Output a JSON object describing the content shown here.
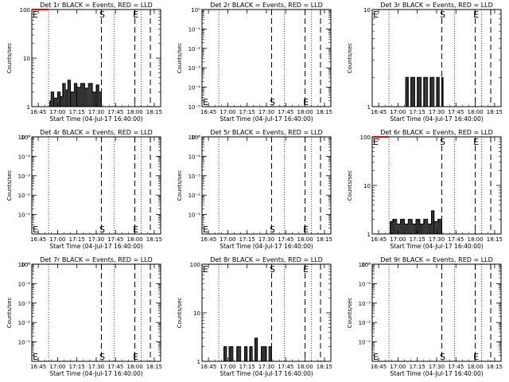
{
  "colors": {
    "background": "#ffffff",
    "events": "#000000",
    "lld": "#ff0000"
  },
  "shared": {
    "xlabel": "Start Time (04-Jul-17 16:40:00)",
    "ylabel": "Counts/sec",
    "xticks": [
      "16:45",
      "17:00",
      "17:15",
      "17:30",
      "17:45",
      "18:00",
      "18:15"
    ],
    "xrange_minutes": [
      0,
      100
    ],
    "xtick_minutes": [
      5,
      20,
      35,
      50,
      65,
      80,
      95
    ],
    "markers": {
      "dotted_minutes": [
        13,
        64,
        85
      ],
      "dashed_minutes": [
        54,
        80,
        92
      ],
      "labels": {
        "start": "S",
        "end": "E",
        "edge": "E"
      }
    },
    "scale": "log"
  },
  "chart_data": [
    {
      "type": "line",
      "title": "Det 1r BLACK = Events, RED = LLD",
      "yticks": [
        "1",
        "10",
        "100"
      ],
      "ylim": [
        1,
        100
      ],
      "marker_label_y": 100,
      "series": [
        {
          "name": "Events",
          "data": [
            [
              13,
              1.0
            ],
            [
              14,
              1.3
            ],
            [
              15,
              2.0
            ],
            [
              17,
              1.5
            ],
            [
              20,
              2.0
            ],
            [
              22,
              1.6
            ],
            [
              24,
              3.0
            ],
            [
              26,
              2.2
            ],
            [
              28,
              3.5
            ],
            [
              30,
              2.0
            ],
            [
              33,
              3.0
            ],
            [
              35,
              2.5
            ],
            [
              38,
              3.0
            ],
            [
              41,
              2.4
            ],
            [
              44,
              3.0
            ],
            [
              47,
              2.0
            ],
            [
              50,
              2.8
            ],
            [
              52,
              2.0
            ],
            [
              54,
              1.0
            ]
          ]
        },
        {
          "name": "LLD",
          "data": [
            [
              0,
              100
            ],
            [
              13,
              100
            ]
          ]
        }
      ]
    },
    {
      "type": "line",
      "title": "Det 2r BLACK = Events, RED = LLD",
      "yticks": [
        "10⁻⁵",
        "10⁻⁴",
        "10⁻³",
        "10⁻²",
        "10⁻¹",
        "10⁰"
      ],
      "ylim": [
        1e-05,
        1
      ],
      "marker_label_y": 1e-05,
      "series": []
    },
    {
      "type": "line",
      "title": "Det 3r BLACK = Events, RED = LLD",
      "yticks": [
        "1",
        "10"
      ],
      "ylim": [
        1,
        10
      ],
      "marker_label_y": 10,
      "series": [
        {
          "name": "Events",
          "data": [
            [
              25,
              1.0
            ],
            [
              26,
              2.0
            ],
            [
              28,
              1.0
            ],
            [
              30,
              2.0
            ],
            [
              33,
              1.0
            ],
            [
              35,
              2.0
            ],
            [
              38,
              1.0
            ],
            [
              40,
              2.0
            ],
            [
              43,
              1.0
            ],
            [
              45,
              2.0
            ],
            [
              48,
              1.0
            ],
            [
              50,
              2.0
            ],
            [
              52,
              1.0
            ],
            [
              54,
              2.0
            ],
            [
              55,
              1.0
            ]
          ]
        }
      ]
    },
    {
      "type": "line",
      "title": "Det 4r BLACK = Events, RED = LLD",
      "yticks": [
        "10⁰",
        "10⁻¹",
        "10⁻²",
        "10⁻³",
        "10⁻⁴",
        "10⁻⁵"
      ],
      "ylim": [
        1e-05,
        1
      ],
      "marker_label_y": 1e-05,
      "series": []
    },
    {
      "type": "line",
      "title": "Det 5r BLACK = Events, RED = LLD",
      "yticks": [
        "10⁰",
        "10⁻¹",
        "10⁻²",
        "10⁻³",
        "10⁻⁴",
        "10⁻⁵"
      ],
      "ylim": [
        1e-05,
        1
      ],
      "marker_label_y": 1e-05,
      "series": []
    },
    {
      "type": "line",
      "title": "Det 6r BLACK = Events, RED = LLD",
      "yticks": [
        "1",
        "10",
        "100"
      ],
      "ylim": [
        1,
        100
      ],
      "marker_label_y": 100,
      "series": [
        {
          "name": "Events",
          "data": [
            [
              13,
              1.0
            ],
            [
              14,
              1.8
            ],
            [
              16,
              2.0
            ],
            [
              19,
              1.6
            ],
            [
              22,
              2.0
            ],
            [
              25,
              1.6
            ],
            [
              28,
              2.0
            ],
            [
              31,
              1.6
            ],
            [
              34,
              2.0
            ],
            [
              37,
              1.6
            ],
            [
              40,
              2.0
            ],
            [
              43,
              1.6
            ],
            [
              46,
              3.0
            ],
            [
              48,
              1.8
            ],
            [
              51,
              2.0
            ],
            [
              54,
              1.0
            ]
          ]
        },
        {
          "name": "LLD",
          "data": [
            [
              0,
              100
            ],
            [
              13,
              100
            ]
          ]
        }
      ]
    },
    {
      "type": "line",
      "title": "Det 7r BLACK = Events, RED = LLD",
      "yticks": [
        "10⁰",
        "10⁻¹",
        "10⁻²",
        "10⁻³",
        "10⁻⁴",
        "10⁻⁵"
      ],
      "ylim": [
        1e-05,
        1
      ],
      "marker_label_y": 1e-05,
      "series": []
    },
    {
      "type": "line",
      "title": "Det 8r BLACK = Events, RED = LLD",
      "yticks": [
        "1",
        "10",
        "100"
      ],
      "ylim": [
        1,
        100
      ],
      "marker_label_y": 100,
      "series": [
        {
          "name": "Events",
          "data": [
            [
              16,
              1.0
            ],
            [
              17,
              2.0
            ],
            [
              19,
              1.0
            ],
            [
              21,
              2.0
            ],
            [
              24,
              1.0
            ],
            [
              27,
              2.0
            ],
            [
              30,
              1.0
            ],
            [
              33,
              2.0
            ],
            [
              35,
              1.0
            ],
            [
              37,
              2.0
            ],
            [
              39,
              1.0
            ],
            [
              41,
              3.0
            ],
            [
              43,
              1.0
            ],
            [
              46,
              2.0
            ],
            [
              50,
              1.0
            ],
            [
              52,
              2.0
            ],
            [
              54,
              1.0
            ]
          ]
        }
      ]
    },
    {
      "type": "line",
      "title": "Det 9r BLACK = Events, RED = LLD",
      "yticks": [
        "10⁰",
        "10⁻¹",
        "10⁻²",
        "10⁻³",
        "10⁻⁴",
        "10⁻⁵"
      ],
      "ylim": [
        1e-05,
        1
      ],
      "marker_label_y": 1e-05,
      "series": []
    }
  ]
}
